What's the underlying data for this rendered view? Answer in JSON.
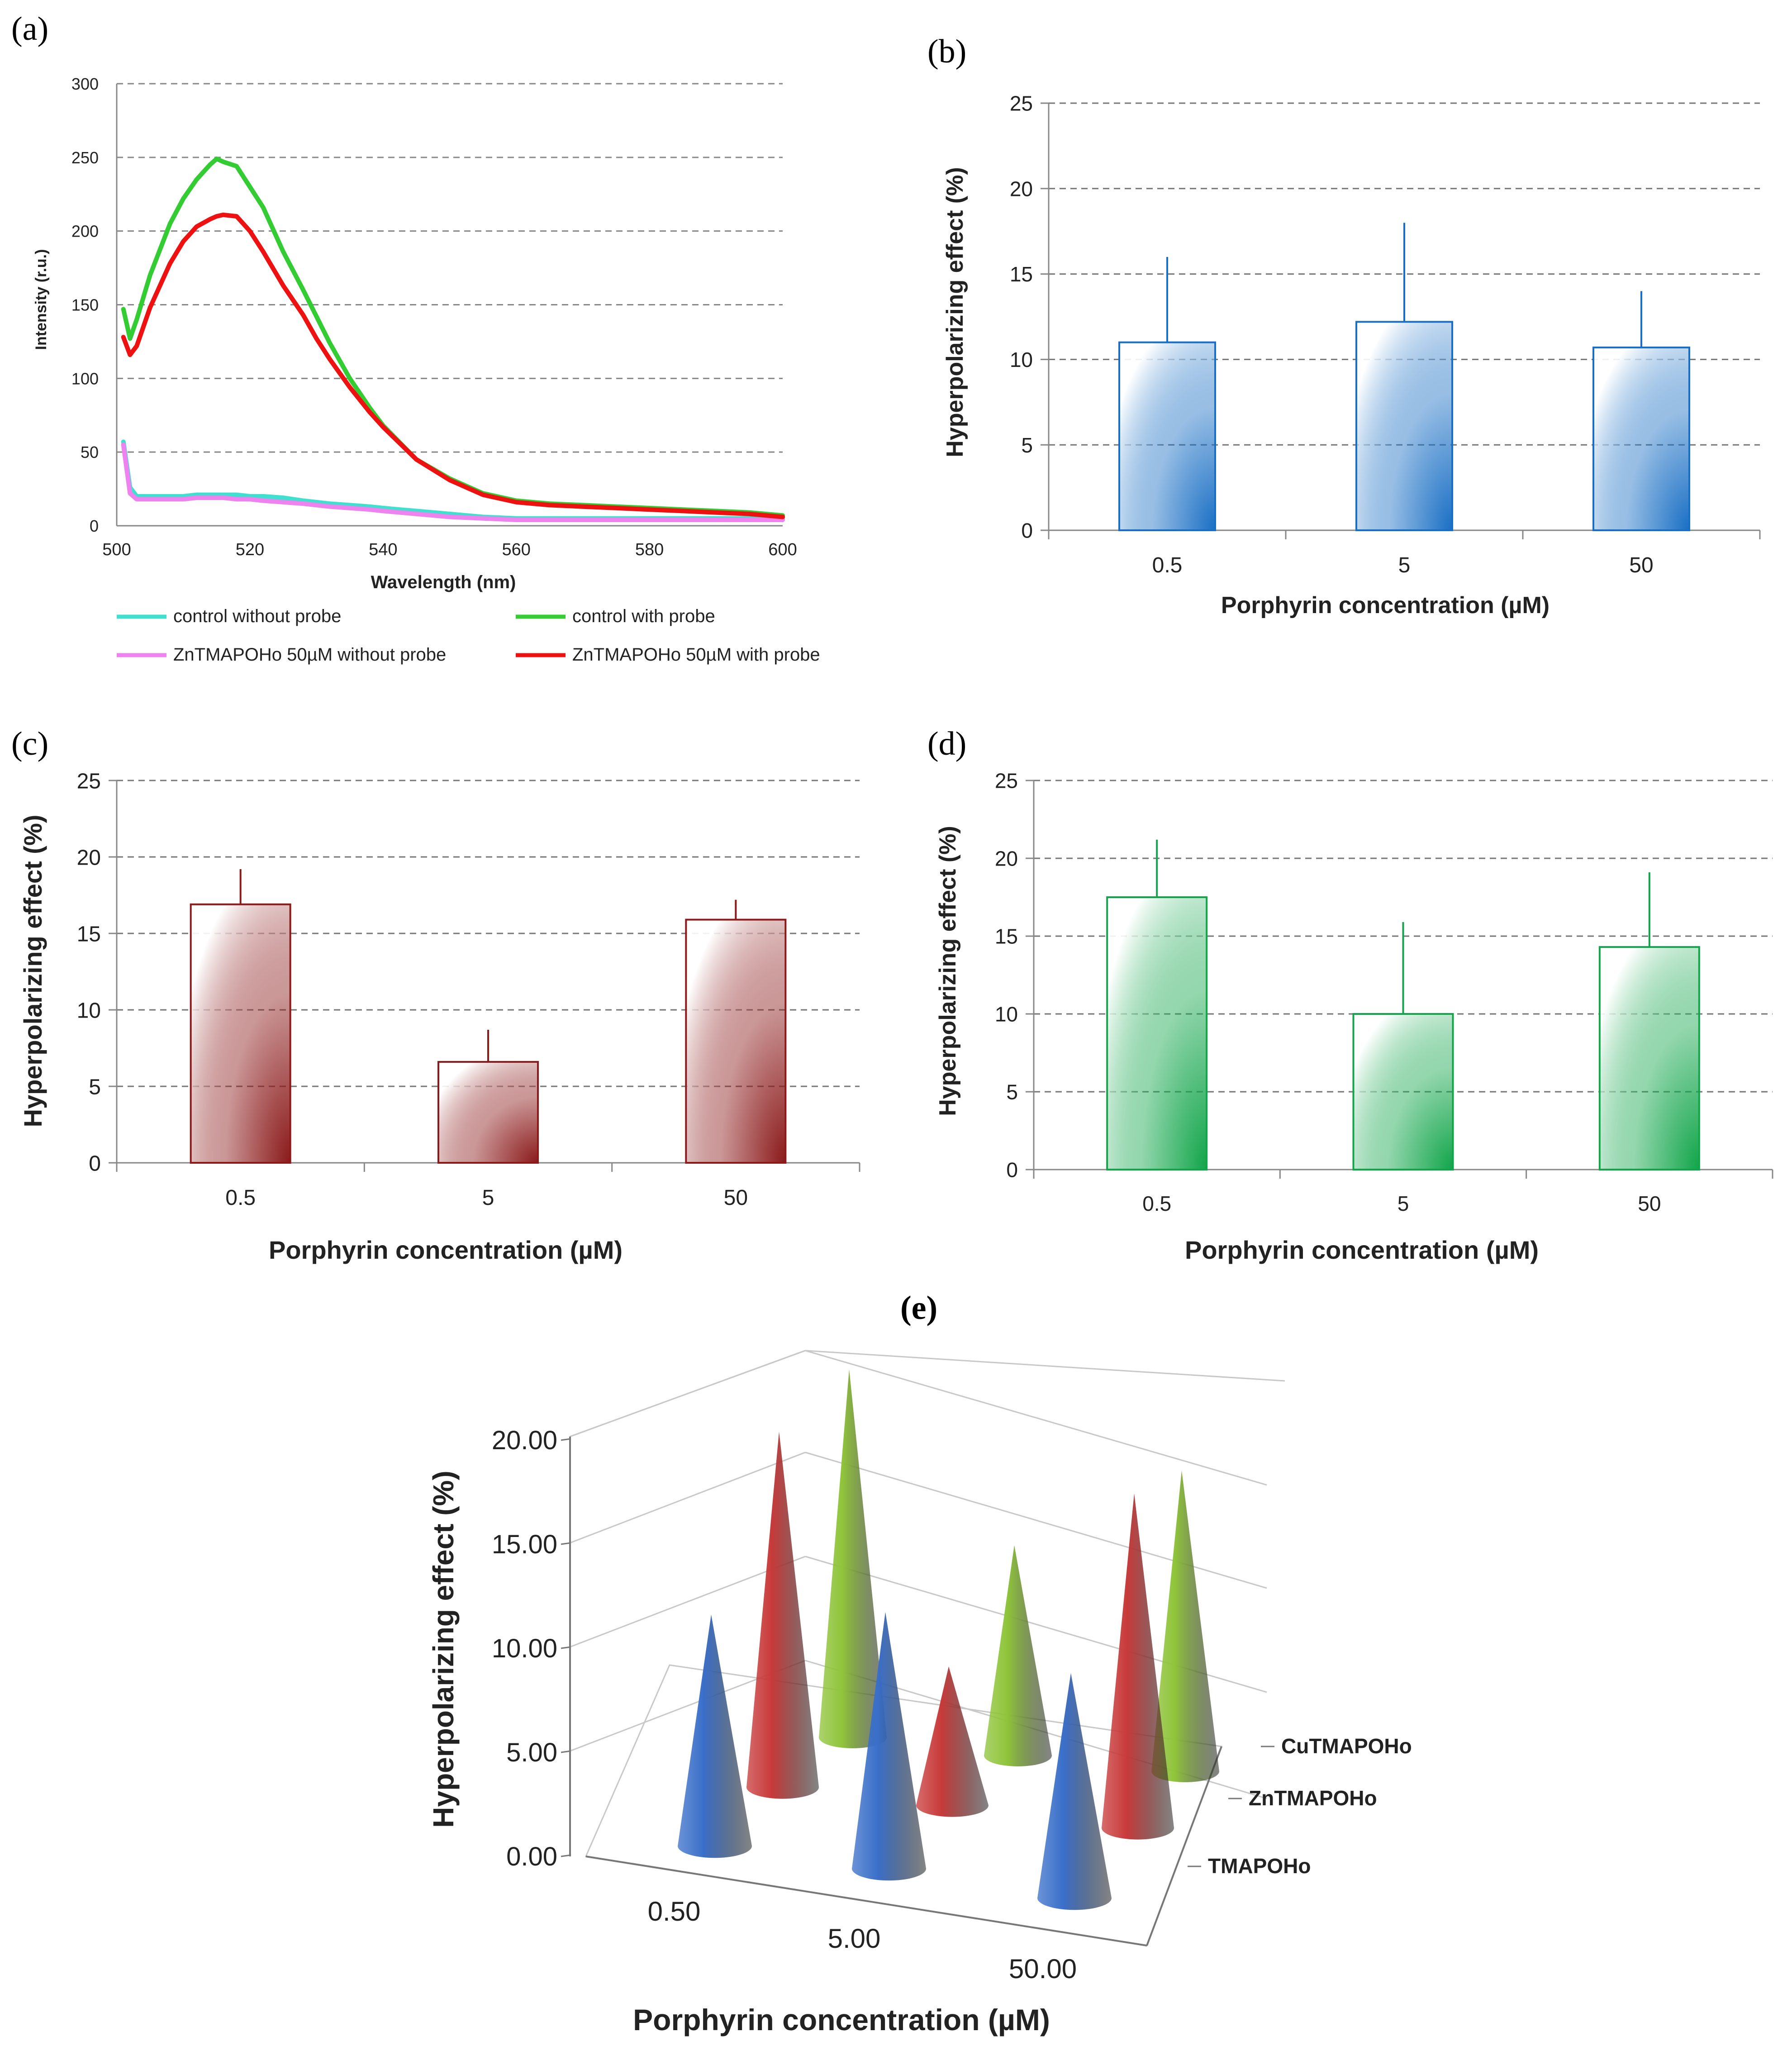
{
  "chart_data": [
    {
      "panel": "(a)",
      "type": "line",
      "xlabel": "Wavelength (nm)",
      "ylabel": "Intensity (r.u.)",
      "xlim": [
        500,
        600
      ],
      "ylim": [
        0,
        300
      ],
      "xticks": [
        500,
        520,
        540,
        560,
        580,
        600
      ],
      "yticks": [
        0,
        50,
        100,
        150,
        200,
        250,
        300
      ],
      "grid": true,
      "legend_position": "bottom",
      "x": [
        501,
        502,
        503,
        505,
        508,
        510,
        512,
        514,
        515,
        516,
        518,
        520,
        522,
        525,
        528,
        530,
        532,
        535,
        538,
        540,
        545,
        550,
        555,
        560,
        565,
        570,
        575,
        580,
        585,
        590,
        595,
        600
      ],
      "series": [
        {
          "name": "control without probe",
          "color": "#40e0d0",
          "values": [
            57,
            26,
            20,
            20,
            20,
            20,
            21,
            21,
            21,
            21,
            21,
            20,
            20,
            19,
            17,
            16,
            15,
            14,
            13,
            12,
            10,
            8,
            6,
            5,
            5,
            5,
            5,
            5,
            5,
            5,
            5,
            5
          ]
        },
        {
          "name": "control with probe",
          "color": "#33cc33",
          "values": [
            147,
            127,
            140,
            170,
            205,
            222,
            235,
            245,
            249,
            247,
            244,
            230,
            216,
            186,
            160,
            142,
            124,
            100,
            80,
            68,
            45,
            32,
            22,
            17,
            15,
            14,
            13,
            12,
            11,
            10,
            9,
            7
          ]
        },
        {
          "name": "ZnTMAPOHo 50µM without probe",
          "color": "#ee82ee",
          "values": [
            55,
            22,
            18,
            18,
            18,
            18,
            19,
            19,
            19,
            19,
            18,
            18,
            17,
            16,
            15,
            14,
            13,
            12,
            11,
            10,
            8,
            6,
            5,
            4,
            4,
            4,
            4,
            4,
            4,
            4,
            4,
            4
          ]
        },
        {
          "name": "ZnTMAPOHo 50µM with probe",
          "color": "#ee1111",
          "values": [
            128,
            116,
            122,
            148,
            178,
            193,
            203,
            208,
            210,
            211,
            210,
            200,
            186,
            163,
            143,
            127,
            113,
            94,
            77,
            67,
            45,
            31,
            21,
            16,
            14,
            13,
            12,
            11,
            10,
            9,
            8,
            6
          ]
        }
      ]
    },
    {
      "panel": "(b)",
      "type": "bar",
      "color": "#1a6fc4",
      "categories": [
        "0.5",
        "5",
        "50"
      ],
      "values": [
        11.0,
        12.2,
        10.7
      ],
      "errors": [
        5.0,
        5.8,
        3.3
      ],
      "xlabel": "Porphyrin concentration (µM)",
      "ylabel": "Hyperpolarizing effect (%)",
      "ylim": [
        0,
        25
      ],
      "yticks": [
        0,
        5,
        10,
        15,
        20,
        25
      ],
      "grid": true
    },
    {
      "panel": "(c)",
      "type": "bar",
      "color": "#8b1a1a",
      "categories": [
        "0.5",
        "5",
        "50"
      ],
      "values": [
        16.9,
        6.6,
        15.9
      ],
      "errors": [
        2.3,
        2.1,
        1.3
      ],
      "xlabel": "Porphyrin concentration (µM)",
      "ylabel": "Hyperpolarizing effect (%)",
      "ylim": [
        0,
        25
      ],
      "yticks": [
        0,
        5,
        10,
        15,
        20,
        25
      ],
      "grid": true
    },
    {
      "panel": "(d)",
      "type": "bar",
      "color": "#12a54a",
      "categories": [
        "0.5",
        "5",
        "50"
      ],
      "values": [
        17.5,
        10.0,
        14.3
      ],
      "errors": [
        3.7,
        5.9,
        4.8
      ],
      "xlabel": "Porphyrin concentration (µM)",
      "ylabel": "Hyperpolarizing effect (%)",
      "ylim": [
        0,
        25
      ],
      "yticks": [
        0,
        5,
        10,
        15,
        20,
        25
      ],
      "grid": true
    },
    {
      "panel": "(e)",
      "type": "bar",
      "style": "3d-cone",
      "categories": [
        "0.50",
        "5.00",
        "50.00"
      ],
      "series": [
        {
          "name": "TMAPOHo",
          "color": "#3a6fc9",
          "values": [
            11.0,
            12.2,
            10.7
          ]
        },
        {
          "name": "ZnTMAPOHo",
          "color": "#c83a3a",
          "values": [
            16.9,
            6.6,
            15.9
          ]
        },
        {
          "name": "CuTMAPOHo",
          "color": "#8fc43a",
          "values": [
            17.5,
            10.0,
            14.3
          ]
        }
      ],
      "xlabel": "Porphyrin concentration (µM)",
      "ylabel": "Hyperpolarizing effect (%)",
      "ylim": [
        0,
        20
      ],
      "ytick_labels": [
        "0.00",
        "5.00",
        "10.00",
        "15.00",
        "20.00"
      ]
    }
  ]
}
